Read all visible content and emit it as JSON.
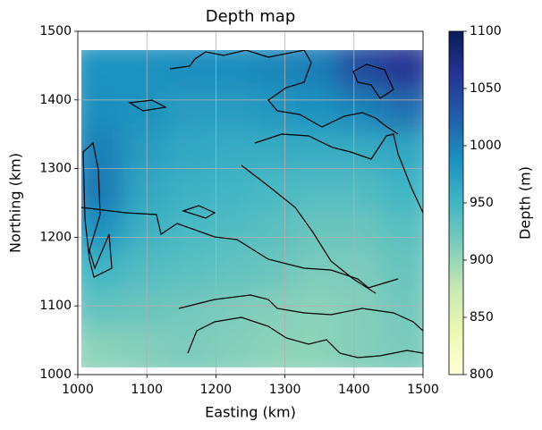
{
  "chart_data": {
    "type": "heatmap",
    "title": "Depth map",
    "xlabel": "Easting (km)",
    "ylabel": "Northing (km)",
    "xlim": [
      1000,
      1500
    ],
    "ylim": [
      1000,
      1500
    ],
    "xticks": [
      1000,
      1100,
      1200,
      1300,
      1400,
      1500
    ],
    "yticks": [
      1000,
      1100,
      1200,
      1300,
      1400,
      1500
    ],
    "grid": true,
    "x_edges": [
      1005,
      1067,
      1129,
      1191,
      1253,
      1314,
      1376,
      1438,
      1500
    ],
    "y_edges": [
      1010,
      1067.5,
      1125,
      1182.5,
      1240,
      1297.5,
      1355,
      1412.5,
      1470
    ],
    "z": [
      [
        905,
        910,
        915,
        910,
        905,
        905,
        910,
        915
      ],
      [
        930,
        925,
        920,
        915,
        910,
        905,
        910,
        920
      ],
      [
        950,
        940,
        935,
        930,
        925,
        915,
        915,
        925
      ],
      [
        985,
        955,
        945,
        940,
        935,
        925,
        925,
        935
      ],
      [
        1005,
        965,
        955,
        950,
        945,
        940,
        940,
        950
      ],
      [
        1000,
        975,
        965,
        960,
        960,
        960,
        960,
        965
      ],
      [
        990,
        985,
        975,
        975,
        980,
        985,
        995,
        1010
      ],
      [
        985,
        985,
        990,
        990,
        995,
        1000,
        1040,
        1060
      ]
    ],
    "colormap": [
      "#ffffd9",
      "#edf8b1",
      "#c7e9b4",
      "#7fcdbb",
      "#41b6c4",
      "#1d91c0",
      "#225ea8",
      "#253494",
      "#081d58"
    ],
    "colorbar": {
      "label": "Depth (m)",
      "lim": [
        800,
        1100
      ],
      "ticks": [
        800,
        850,
        900,
        950,
        1000,
        1050,
        1100
      ]
    }
  }
}
